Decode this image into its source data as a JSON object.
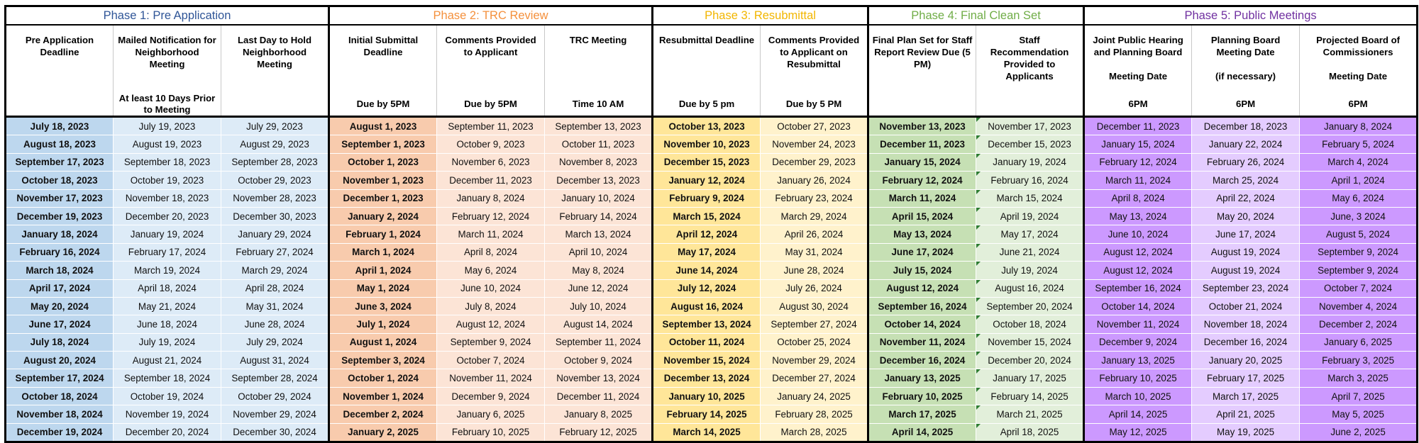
{
  "colors": {
    "p1_text": "#2f5597",
    "p2_text": "#f4903c",
    "p3_text": "#f2b600",
    "p4_text": "#70ad47",
    "p5_text": "#7030a0",
    "p1_a": "#bdd7ee",
    "p1_b": "#ddebf7",
    "p2_a": "#f8cbad",
    "p2_b": "#fce4d6",
    "p3_a": "#ffe699",
    "p3_b": "#fff2cc",
    "p4_a": "#c6e0b4",
    "p4_b": "#e2efda",
    "p5_a": "#cc99ff",
    "p5_b": "#e4ccff"
  },
  "phases": [
    {
      "label": "Phase 1: Pre Application",
      "span": 3,
      "key": "p1"
    },
    {
      "label": "Phase 2: TRC Review",
      "span": 3,
      "key": "p2"
    },
    {
      "label": "Phase 3: Resubmittal",
      "span": 2,
      "key": "p3"
    },
    {
      "label": "Phase 4: Final Clean Set",
      "span": 2,
      "key": "p4"
    },
    {
      "label": "Phase 5: Public Meetings",
      "span": 3,
      "key": "p5"
    }
  ],
  "columns": [
    {
      "main": "Pre Application Deadline",
      "sub": "",
      "phase": "p1",
      "bold": true
    },
    {
      "main": "Mailed Notification for Neighborhood Meeting",
      "sub": "At least 10 Days Prior to Meeting",
      "phase": "p1",
      "bold": false
    },
    {
      "main": "Last Day to Hold Neighborhood Meeting",
      "sub": "",
      "phase": "p1",
      "bold": false
    },
    {
      "main": "Initial Submittal Deadline",
      "sub": "Due by 5PM",
      "phase": "p2",
      "bold": true
    },
    {
      "main": "Comments Provided to Applicant",
      "sub": "Due by 5PM",
      "phase": "p2",
      "bold": false
    },
    {
      "main": "TRC Meeting",
      "sub": "Time 10 AM",
      "phase": "p2",
      "bold": false
    },
    {
      "main": "Resubmittal Deadline",
      "sub": "Due by 5 pm",
      "phase": "p3",
      "bold": true
    },
    {
      "main": "Comments Provided to Applicant on Resubmittal",
      "sub": "Due by 5 PM",
      "phase": "p3",
      "bold": false
    },
    {
      "main": "Final Plan Set for Staff Report Review Due (5 PM)",
      "sub": "",
      "phase": "p4",
      "bold": true
    },
    {
      "main": "Staff Recommendation Provided to Applicants",
      "sub": "",
      "phase": "p4",
      "bold": false
    },
    {
      "main": "Joint Public Hearing and Planning Board\n\nMeeting Date",
      "sub": "6PM",
      "phase": "p5",
      "bold": false
    },
    {
      "main": "Planning Board Meeting Date\n\n(if necessary)",
      "sub": "6PM",
      "phase": "p5",
      "bold": false
    },
    {
      "main": "Projected Board of Commissioners\n\nMeeting Date",
      "sub": "6PM",
      "phase": "p5",
      "bold": false
    }
  ],
  "rows": [
    [
      "July 18, 2023",
      "July 19, 2023",
      "July 29, 2023",
      "August 1, 2023",
      "September 11, 2023",
      "September 13, 2023",
      "October 13, 2023",
      "October 27, 2023",
      "November 13, 2023",
      "November 17, 2023",
      "December 11, 2023",
      "December 18, 2023",
      "January 8, 2024"
    ],
    [
      "August 18, 2023",
      "August 19, 2023",
      "August 29, 2023",
      "September 1, 2023",
      "October 9, 2023",
      "October 11, 2023",
      "November 10, 2023",
      "November 24, 2023",
      "December 11, 2023",
      "December 15, 2023",
      "January 15, 2024",
      "January 22, 2024",
      "February 5, 2024"
    ],
    [
      "September 17, 2023",
      "September 18, 2023",
      "September 28, 2023",
      "October 1, 2023",
      "November 6, 2023",
      "November 8, 2023",
      "December 15, 2023",
      "December 29, 2023",
      "January 15, 2024",
      "January 19, 2024",
      "February 12, 2024",
      "February 26, 2024",
      "March 4, 2024"
    ],
    [
      "October 18, 2023",
      "October 19, 2023",
      "October 29, 2023",
      "November 1, 2023",
      "December 11, 2023",
      "December 13, 2023",
      "January 12, 2024",
      "January 26, 2024",
      "February 12, 2024",
      "February 16, 2024",
      "March 11, 2024",
      "March 25, 2024",
      "April 1, 2024"
    ],
    [
      "November 17, 2023",
      "November 18, 2023",
      "November 28, 2023",
      "December 1, 2023",
      "January 8, 2024",
      "January 10, 2024",
      "February 9, 2024",
      "February 23, 2024",
      "March 11, 2024",
      "March 15, 2024",
      "April 8, 2024",
      "April 22, 2024",
      "May 6, 2024"
    ],
    [
      "December 19, 2023",
      "December 20, 2023",
      "December 30, 2023",
      "January 2, 2024",
      "February 12, 2024",
      "February 14, 2024",
      "March 15, 2024",
      "March 29, 2024",
      "April 15, 2024",
      "April 19, 2024",
      "May 13, 2024",
      "May 20, 2024",
      "June, 3 2024"
    ],
    [
      "January 18, 2024",
      "January 19, 2024",
      "January 29, 2024",
      "February 1, 2024",
      "March 11, 2024",
      "March 13, 2024",
      "April 12, 2024",
      "April 26, 2024",
      "May 13, 2024",
      "May 17, 2024",
      "June 10, 2024",
      "June 17, 2024",
      "August 5, 2024"
    ],
    [
      "February 16, 2024",
      "February 17, 2024",
      "February 27, 2024",
      "March 1, 2024",
      "April 8, 2024",
      "April 10, 2024",
      "May 17, 2024",
      "May 31, 2024",
      "June 17, 2024",
      "June 21, 2024",
      "August 12, 2024",
      "August 19, 2024",
      "September 9, 2024"
    ],
    [
      "March 18, 2024",
      "March 19, 2024",
      "March 29, 2024",
      "April 1, 2024",
      "May 6, 2024",
      "May 8, 2024",
      "June 14, 2024",
      "June 28, 2024",
      "July 15, 2024",
      "July 19, 2024",
      "August 12, 2024",
      "August 19, 2024",
      "September 9, 2024"
    ],
    [
      "April 17, 2024",
      "April 18, 2024",
      "April 28, 2024",
      "May 1, 2024",
      "June 10, 2024",
      "June 12, 2024",
      "July 12, 2024",
      "July 26, 2024",
      "August 12, 2024",
      "August 16, 2024",
      "September 16, 2024",
      "September 23, 2024",
      "October 7, 2024"
    ],
    [
      "May 20, 2024",
      "May 21, 2024",
      "May 31, 2024",
      "June 3, 2024",
      "July 8, 2024",
      "July 10, 2024",
      "August 16, 2024",
      "August 30, 2024",
      "September 16, 2024",
      "September 20, 2024",
      "October 14, 2024",
      "October 21, 2024",
      "November 4, 2024"
    ],
    [
      "June 17, 2024",
      "June 18, 2024",
      "June 28, 2024",
      "July 1, 2024",
      "August 12, 2024",
      "August 14, 2024",
      "September 13, 2024",
      "September 27, 2024",
      "October 14, 2024",
      "October 18, 2024",
      "November 11, 2024",
      "November 18, 2024",
      "December 2, 2024"
    ],
    [
      "July 18, 2024",
      "July 19, 2024",
      "July 29, 2024",
      "August 1, 2024",
      "September 9, 2024",
      "September 11, 2024",
      "October 11, 2024",
      "October 25, 2024",
      "November 11, 2024",
      "November 15, 2024",
      "December 9, 2024",
      "December 16, 2024",
      "January 6, 2025"
    ],
    [
      "August 20, 2024",
      "August 21, 2024",
      "August 31, 2024",
      "September 3, 2024",
      "October 7, 2024",
      "October 9, 2024",
      "November 15, 2024",
      "November 29, 2024",
      "December 16, 2024",
      "December 20, 2024",
      "January 13, 2025",
      "January 20, 2025",
      "February 3, 2025"
    ],
    [
      "September 17, 2024",
      "September 18, 2024",
      "September 28, 2024",
      "October 1, 2024",
      "November 11, 2024",
      "November 13, 2024",
      "December 13, 2024",
      "December 27, 2024",
      "January 13, 2025",
      "January 17, 2025",
      "February 10, 2025",
      "February 17, 2025",
      "March 3, 2025"
    ],
    [
      "October 18, 2024",
      "October 19, 2024",
      "October 29, 2024",
      "November 1, 2024",
      "December 9, 2024",
      "December 11, 2024",
      "January 10, 2025",
      "January 24, 2025",
      "February 10, 2025",
      "February 14, 2025",
      "March 10, 2025",
      "March 17, 2025",
      "April 7, 2025"
    ],
    [
      "November 18, 2024",
      "November 19, 2024",
      "November 29, 2024",
      "December 2, 2024",
      "January 6, 2025",
      "January 8, 2025",
      "February 14, 2025",
      "February 28, 2025",
      "March 17, 2025",
      "March 21, 2025",
      "April 14, 2025",
      "April 21, 2025",
      "May 5, 2025"
    ],
    [
      "December 19, 2024",
      "December 20, 2024",
      "December 30, 2024",
      "January 2, 2025",
      "February 10, 2025",
      "February 12, 2025",
      "March 14, 2025",
      "March 28, 2025",
      "April 14, 2025",
      "April 18, 2025",
      "May 12, 2025",
      "May 19, 2025",
      "June 2, 2025"
    ]
  ]
}
